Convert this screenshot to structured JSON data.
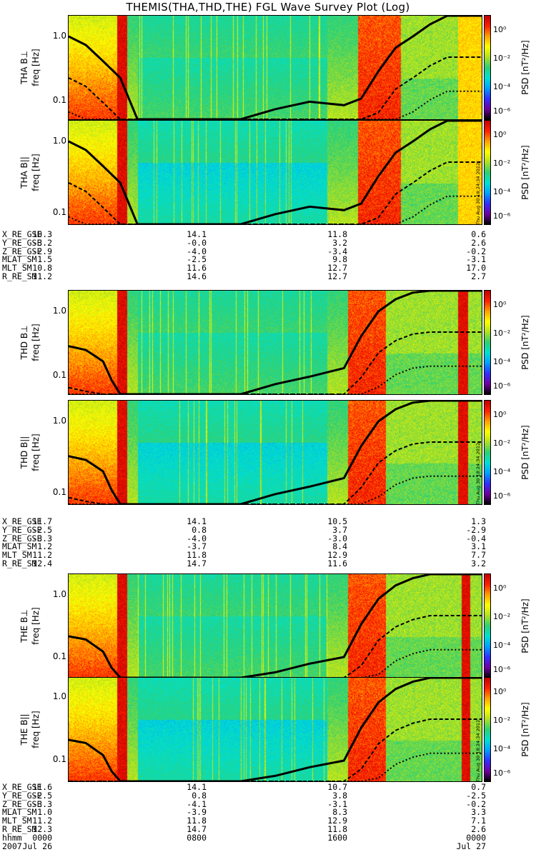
{
  "title": "THEMIS(THA,THD,THE) FGL Wave Survey Plot (Log)",
  "colors": {
    "bg": "#ffffff",
    "curve": "#000000"
  },
  "colorbar": {
    "label": "PSD [nT²/Hz]",
    "ticks": [
      "10⁰",
      "10⁻²",
      "10⁻⁴",
      "10⁻⁶"
    ],
    "stops": [
      "#000000",
      "#7000a0",
      "#3030ff",
      "#00a0ff",
      "#00e0d0",
      "#30d070",
      "#b0e020",
      "#ffff00",
      "#ffa000",
      "#ff2000",
      "#c00000"
    ]
  },
  "freq_ticks": [
    "1.0",
    "0.1"
  ],
  "probes": [
    {
      "id": "THA",
      "panels": [
        {
          "label": "THA B⊥",
          "axis": "freq [Hz]"
        },
        {
          "label": "THA B||",
          "axis": "freq [Hz]"
        }
      ],
      "stamp": "Thu Aug 30 18:24:34 2012",
      "ephemeris": [
        {
          "name": "X_RE_GSE",
          "values": [
            "10.3",
            "14.1",
            "11.8",
            "0.6"
          ]
        },
        {
          "name": "Y_RE_GSE",
          "values": [
            "-3.2",
            "-0.0",
            "3.2",
            "2.6"
          ]
        },
        {
          "name": "Z_RE_GSE",
          "values": [
            "-2.9",
            "-4.0",
            "-3.4",
            "-0.2"
          ]
        },
        {
          "name": "MLAT_SM",
          "values": [
            "1.5",
            "-2.5",
            "9.8",
            "-3.1"
          ]
        },
        {
          "name": "MLT_SM",
          "values": [
            "10.8",
            "11.6",
            "12.7",
            "17.0"
          ]
        },
        {
          "name": "R_RE_SM",
          "values": [
            "11.2",
            "14.6",
            "12.7",
            "2.7"
          ]
        }
      ]
    },
    {
      "id": "THD",
      "panels": [
        {
          "label": "THD B⊥",
          "axis": "freq [Hz]"
        },
        {
          "label": "THD B||",
          "axis": "freq [Hz]"
        }
      ],
      "stamp": "Thu Aug 30 18:24:34 2012",
      "ephemeris": [
        {
          "name": "X_RE_GSE",
          "values": [
            "11.7",
            "14.1",
            "10.5",
            "1.3"
          ]
        },
        {
          "name": "Y_RE_GSE",
          "values": [
            "-2.5",
            "0.8",
            "3.7",
            "-2.9"
          ]
        },
        {
          "name": "Z_RE_GSE",
          "values": [
            "-3.3",
            "-4.0",
            "-3.0",
            "-0.4"
          ]
        },
        {
          "name": "MLAT_SM",
          "values": [
            "1.2",
            "-3.7",
            "8.4",
            "3.1"
          ]
        },
        {
          "name": "MLT_SM",
          "values": [
            "11.2",
            "11.8",
            "12.9",
            "7.7"
          ]
        },
        {
          "name": "R_RE_SM",
          "values": [
            "12.4",
            "14.7",
            "11.6",
            "3.2"
          ]
        }
      ]
    },
    {
      "id": "THE",
      "panels": [
        {
          "label": "THE B⊥",
          "axis": "freq [Hz]"
        },
        {
          "label": "THE B||",
          "axis": "freq [Hz]"
        }
      ],
      "stamp": "Thu Aug 30 18:24:34 2012",
      "ephemeris": [
        {
          "name": "X_RE_GSE",
          "values": [
            "11.6",
            "14.1",
            "10.7",
            "0.7"
          ]
        },
        {
          "name": "Y_RE_GSE",
          "values": [
            "-2.5",
            "0.8",
            "3.8",
            "-2.5"
          ]
        },
        {
          "name": "Z_RE_GSE",
          "values": [
            "-3.3",
            "-4.1",
            "-3.1",
            "-0.2"
          ]
        },
        {
          "name": "MLAT_SM",
          "values": [
            "1.0",
            "-3.9",
            "8.3",
            "3.3"
          ]
        },
        {
          "name": "MLT_SM",
          "values": [
            "11.2",
            "11.8",
            "12.9",
            "7.1"
          ]
        },
        {
          "name": "R_RE_SM",
          "values": [
            "12.3",
            "14.7",
            "11.8",
            "2.6"
          ]
        }
      ]
    }
  ],
  "time_axis": {
    "row1_label": "hhmm",
    "row1": [
      "0000",
      "0800",
      "1600",
      "0000"
    ],
    "row2_label": "2007",
    "row2": [
      "Jul 26",
      "",
      "",
      "Jul 27"
    ]
  },
  "chart_data": {
    "type": "heatmap",
    "title": "THEMIS(THA,THD,THE) FGL Wave Survey Plot (Log)",
    "x_label": "hhmm",
    "x_ticks": [
      "0000",
      "0800",
      "1600",
      "0000"
    ],
    "x_hours": [
      0,
      8,
      16,
      24
    ],
    "y_scale": "log",
    "y_label": "freq [Hz]",
    "y_ticks": [
      1.0,
      0.1
    ],
    "y_range": [
      0.05,
      1.6
    ],
    "z_label": "PSD [nT²/Hz]",
    "z_scale": "log",
    "z_range": [
      1e-06,
      10
    ],
    "panels": [
      "THA B⊥",
      "THA B||",
      "THD B⊥",
      "THD B||",
      "THE B⊥",
      "THE B||"
    ],
    "overlay_curves": [
      {
        "probe": "THA",
        "hours": [
          0,
          1,
          2,
          3,
          3.5,
          4,
          10,
          12,
          14,
          16,
          17,
          18,
          19,
          20,
          21,
          22,
          23,
          24
        ],
        "freq_hz": [
          0.8,
          0.6,
          0.35,
          0.2,
          0.1,
          0.05,
          0.05,
          0.07,
          0.09,
          0.08,
          0.1,
          0.25,
          0.55,
          0.8,
          1.2,
          1.6,
          1.6,
          1.6
        ]
      },
      {
        "probe": "THD",
        "hours": [
          0,
          1,
          2,
          2.5,
          3,
          10,
          12,
          14,
          16,
          17,
          18,
          19,
          20,
          21,
          22,
          23,
          24
        ],
        "freq_hz": [
          0.25,
          0.22,
          0.15,
          0.08,
          0.05,
          0.05,
          0.07,
          0.09,
          0.12,
          0.35,
          0.8,
          1.2,
          1.5,
          1.6,
          1.6,
          1.6,
          1.6
        ]
      },
      {
        "probe": "THE",
        "hours": [
          0,
          1,
          2,
          2.5,
          3,
          10,
          12,
          14,
          16,
          17,
          18,
          19,
          20,
          21,
          22,
          23,
          24
        ],
        "freq_hz": [
          0.2,
          0.18,
          0.12,
          0.07,
          0.05,
          0.05,
          0.06,
          0.08,
          0.1,
          0.3,
          0.7,
          1.1,
          1.4,
          1.6,
          1.6,
          1.6,
          1.6
        ]
      }
    ]
  }
}
